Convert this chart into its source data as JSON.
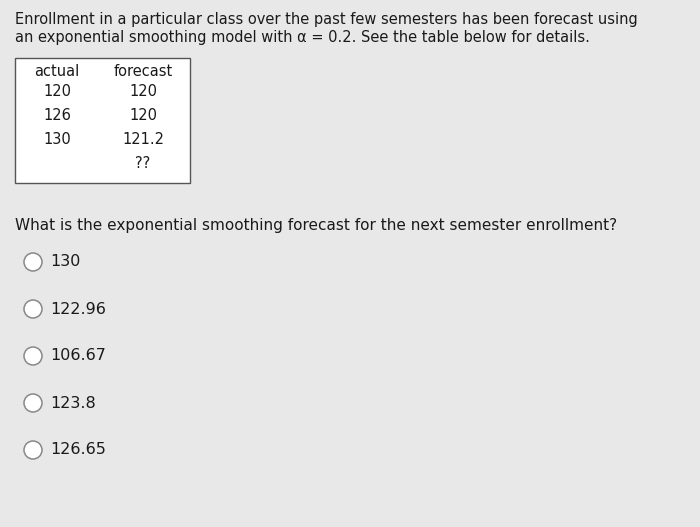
{
  "title_line1": "Enrollment in a particular class over the past few semesters has been forecast using",
  "title_line2": "an exponential smoothing model with α = 0.2. See the table below for details.",
  "table_headers": [
    "actual",
    "forecast"
  ],
  "table_rows": [
    [
      "120",
      "120"
    ],
    [
      "126",
      "120"
    ],
    [
      "130",
      "121.2"
    ],
    [
      "",
      "??"
    ]
  ],
  "question": "What is the exponential smoothing forecast for the next semester enrollment?",
  "options": [
    "130",
    "122.96",
    "106.67",
    "123.8",
    "126.65"
  ],
  "bg_color": "#e8e8e8",
  "text_color": "#1a1a1a",
  "title_fontsize": 10.5,
  "option_fontsize": 11.5,
  "question_fontsize": 11.0,
  "table_fontsize": 10.5
}
